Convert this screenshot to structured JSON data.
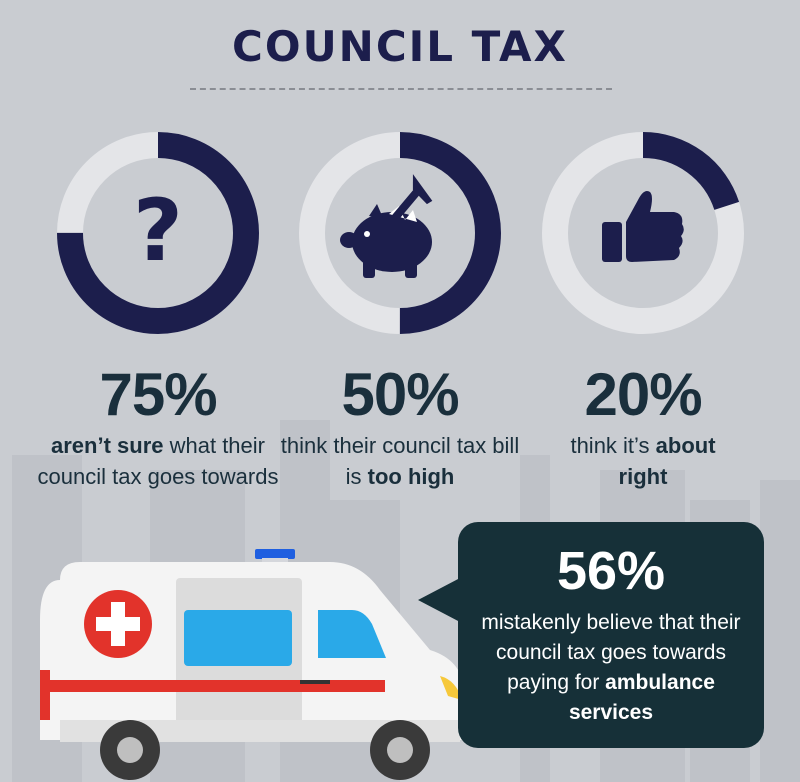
{
  "title": "COUNCIL TAX",
  "colors": {
    "background": "#c9ccd1",
    "navy": "#1c1e4c",
    "ring_track": "#e4e5e8",
    "text_dark": "#1a2f3c",
    "bubble": "#163038",
    "ambulance_red": "#e2332b",
    "ambulance_window": "#2aa9e8"
  },
  "stats": [
    {
      "icon": "question-mark-icon",
      "percent": "75%",
      "value": 75,
      "text_bold_lead": "aren’t sure",
      "text_rest": " what their council tax goes towards"
    },
    {
      "icon": "piggy-bank-hammer-icon",
      "percent": "50%",
      "value": 50,
      "text_lead": "think their council tax bill is ",
      "text_bold_tail": "too high"
    },
    {
      "icon": "thumbs-up-icon",
      "percent": "20%",
      "value": 20,
      "text_lead": "think it’s ",
      "text_bold_tail": "about right"
    }
  ],
  "callout": {
    "percent": "56%",
    "text_lead": "mistakenly believe that their council tax goes towards paying for ",
    "text_bold_tail": "ambulance services"
  }
}
